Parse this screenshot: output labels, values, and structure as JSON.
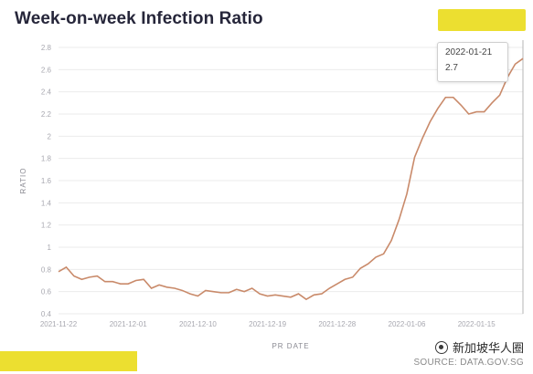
{
  "watermark_top": "",
  "watermark_bottom": "",
  "logo_text": "新加坡华人圈",
  "source": "SOURCE: DATA.GOV.SG",
  "colors": {
    "line": "#c98a6a",
    "grid": "#ebebeb",
    "title": "#26263a",
    "tooltip_line": "#b5b5b5",
    "watermark": "#eadb1a"
  },
  "chart_data": {
    "type": "line",
    "title": "Week-on-week Infection Ratio",
    "xlabel": "PR DATE",
    "ylabel": "RATIO",
    "ylim": [
      0.4,
      2.8
    ],
    "yticks": [
      "0.4",
      "0.6",
      "0.8",
      "1",
      "1.2",
      "1.4",
      "1.6",
      "1.8",
      "2",
      "2.2",
      "2.4",
      "2.6",
      "2.8"
    ],
    "xticks": [
      "2021-11-22",
      "2021-12-01",
      "2021-12-10",
      "2021-12-19",
      "2021-12-28",
      "2022-01-06",
      "2022-01-15"
    ],
    "grid": true,
    "x_start": "2021-11-22",
    "series": [
      {
        "values": [
          0.78,
          0.82,
          0.74,
          0.71,
          0.73,
          0.74,
          0.69,
          0.69,
          0.67,
          0.67,
          0.7,
          0.71,
          0.63,
          0.66,
          0.64,
          0.63,
          0.61,
          0.58,
          0.56,
          0.61,
          0.6,
          0.59,
          0.59,
          0.62,
          0.6,
          0.63,
          0.58,
          0.56,
          0.57,
          0.56,
          0.55,
          0.58,
          0.53,
          0.57,
          0.58,
          0.63,
          0.67,
          0.71,
          0.73,
          0.81,
          0.85,
          0.91,
          0.94,
          1.06,
          1.25,
          1.48,
          1.81,
          1.98,
          2.13,
          2.25,
          2.35,
          2.35,
          2.28,
          2.2,
          2.22,
          2.22,
          2.3,
          2.37,
          2.53,
          2.65,
          2.7
        ]
      }
    ],
    "tooltip": {
      "date": "2022-01-21",
      "value": "2.7"
    }
  }
}
